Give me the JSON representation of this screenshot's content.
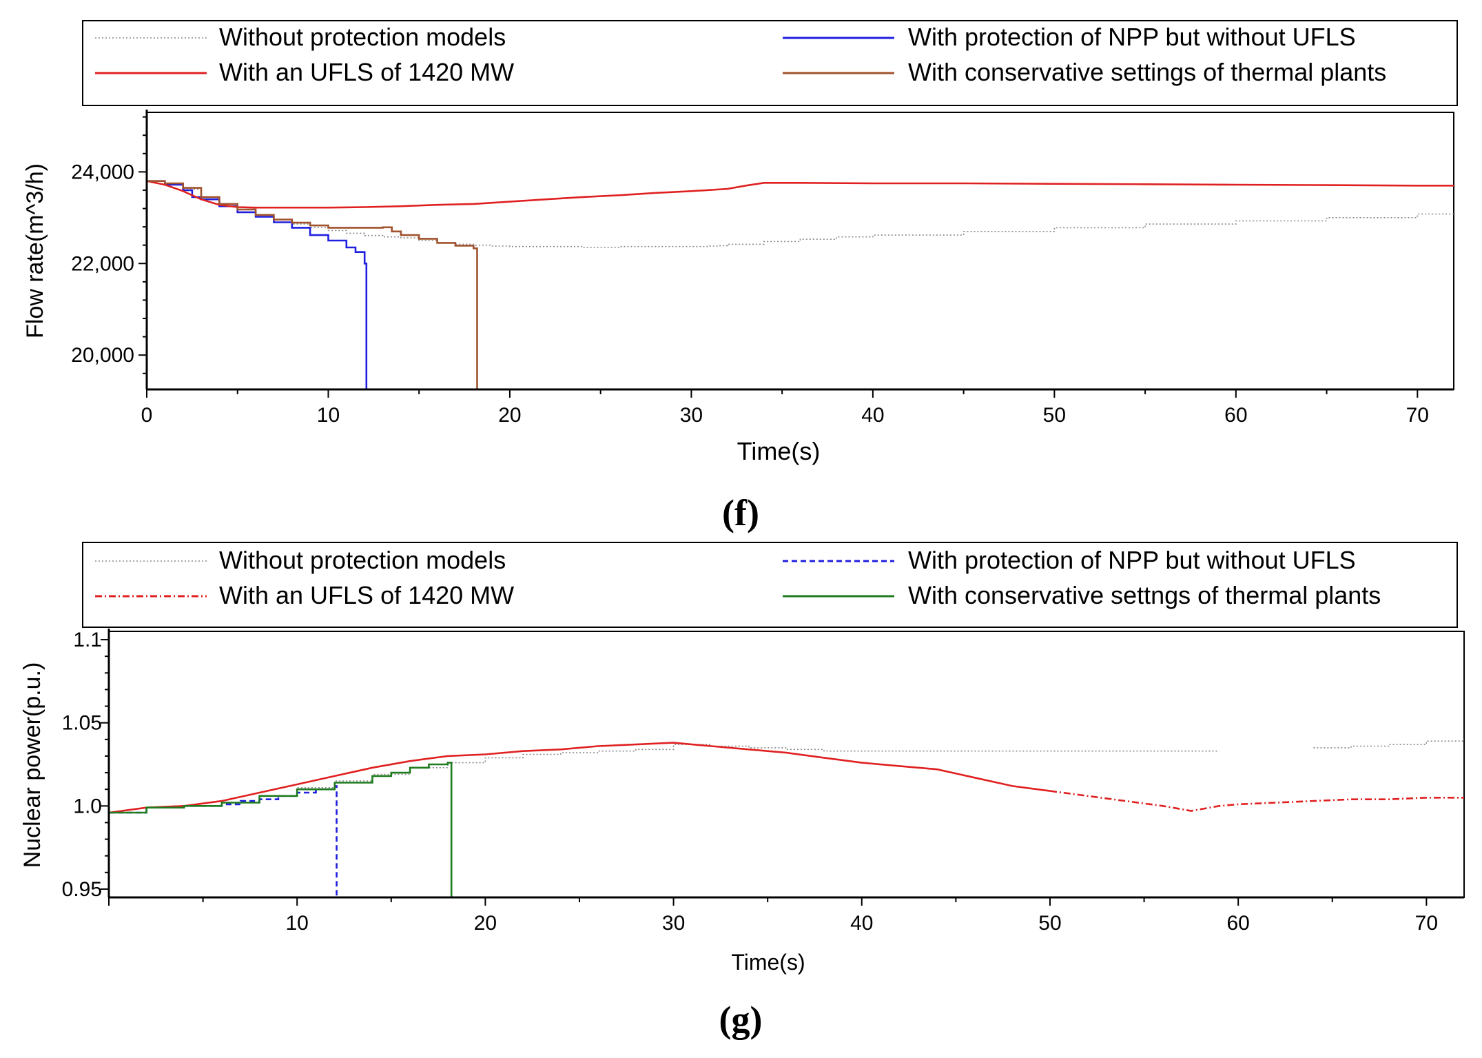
{
  "chart_data": [
    {
      "type": "line",
      "panel_label": "(f)",
      "xlabel": "Time(s)",
      "ylabel": "Flow rate(m^3/h)",
      "xlim": [
        0,
        72
      ],
      "ylim": [
        19250,
        25300
      ],
      "x_ticks": [
        0,
        10,
        20,
        30,
        40,
        50,
        60,
        70
      ],
      "x_tick_labels": [
        "0",
        "10",
        "20",
        "30",
        "40",
        "50",
        "60",
        "70"
      ],
      "y_ticks": [
        20000,
        22000,
        24000
      ],
      "y_tick_labels": [
        "20,000",
        "22,000",
        "24,000"
      ],
      "grid": false,
      "legend_position": "top",
      "series": [
        {
          "name": "Without protection models",
          "color": "#888888",
          "style": "dotted",
          "step": true,
          "x": [
            0,
            1,
            2,
            3,
            4,
            5,
            6,
            7,
            8,
            9,
            10,
            11,
            12,
            13,
            14,
            15,
            16,
            17,
            18,
            19,
            20,
            22,
            24,
            26,
            28,
            30,
            31,
            31.5,
            32,
            34,
            36,
            38,
            40,
            45,
            50,
            55,
            60,
            65,
            70,
            72
          ],
          "y": [
            23800,
            23750,
            23620,
            23440,
            23300,
            23180,
            23060,
            22950,
            22860,
            22790,
            22720,
            22660,
            22610,
            22580,
            22560,
            22500,
            22450,
            22420,
            22400,
            22380,
            22370,
            22370,
            22350,
            22370,
            22370,
            22370,
            22380,
            22390,
            22420,
            22480,
            22530,
            22580,
            22620,
            22700,
            22780,
            22860,
            22930,
            23000,
            23080,
            23120
          ]
        },
        {
          "name": "With protection of NPP but without UFLS",
          "color": "#1f1fe0",
          "style": "solid",
          "step": true,
          "x": [
            0,
            1,
            2,
            2.5,
            3,
            4,
            5,
            6,
            7,
            8,
            9,
            10,
            11,
            11.5,
            12,
            12.1,
            12.1
          ],
          "y": [
            23800,
            23720,
            23600,
            23450,
            23400,
            23250,
            23120,
            23020,
            22900,
            22780,
            22620,
            22500,
            22350,
            22250,
            22000,
            21900,
            19250
          ]
        },
        {
          "name": "With an UFLS of 1420 MW",
          "color": "#e02020",
          "style": "solid",
          "step": false,
          "x": [
            0,
            1,
            2,
            3,
            4,
            5,
            6,
            8,
            10,
            12,
            14,
            16,
            18,
            20,
            22,
            24,
            26,
            28,
            30,
            32,
            33,
            34,
            36,
            40,
            45,
            50,
            55,
            60,
            65,
            70,
            72
          ],
          "y": [
            23800,
            23720,
            23580,
            23400,
            23280,
            23230,
            23220,
            23220,
            23220,
            23230,
            23250,
            23280,
            23300,
            23350,
            23400,
            23450,
            23490,
            23540,
            23580,
            23630,
            23700,
            23760,
            23760,
            23750,
            23750,
            23740,
            23730,
            23720,
            23710,
            23700,
            23700
          ]
        },
        {
          "name": "With conservative settings of thermal plants",
          "color": "#a0522d",
          "style": "solid",
          "step": true,
          "x": [
            0,
            1,
            2,
            3,
            4,
            5,
            6,
            7,
            8,
            9,
            10,
            11,
            12,
            13,
            13.5,
            14,
            15,
            16,
            17,
            18,
            18.2,
            18.2
          ],
          "y": [
            23800,
            23750,
            23650,
            23450,
            23300,
            23180,
            23060,
            22960,
            22890,
            22830,
            22780,
            22780,
            22780,
            22790,
            22700,
            22620,
            22540,
            22450,
            22390,
            22330,
            22300,
            19250
          ]
        }
      ]
    },
    {
      "type": "line",
      "panel_label": "(g)",
      "xlabel": "Time(s)",
      "ylabel": "Nuclear power(p.u.)",
      "xlim": [
        0,
        72
      ],
      "ylim": [
        0.945,
        1.105
      ],
      "x_ticks": [
        10,
        20,
        30,
        40,
        50,
        60,
        70
      ],
      "x_tick_labels": [
        "10",
        "20",
        "30",
        "40",
        "50",
        "60",
        "70"
      ],
      "y_ticks": [
        0.95,
        1.0,
        1.05,
        1.1
      ],
      "y_tick_labels": [
        "0.95",
        "1.0",
        "1.05",
        "1.1"
      ],
      "grid": false,
      "legend_position": "top",
      "series": [
        {
          "name": "Without protection models",
          "color": "#888888",
          "style": "dotted",
          "step": true,
          "x": [
            0,
            2,
            4,
            6,
            8,
            10,
            12,
            14,
            16,
            18,
            20,
            22,
            24,
            26,
            28,
            30,
            32,
            34,
            36,
            38,
            40,
            45,
            50,
            55,
            59
          ],
          "y": [
            0.996,
            0.999,
            1.0,
            1.002,
            1.006,
            1.011,
            1.015,
            1.019,
            1.023,
            1.026,
            1.029,
            1.031,
            1.032,
            1.033,
            1.034,
            1.037,
            1.036,
            1.035,
            1.034,
            1.033,
            1.033,
            1.033,
            1.033,
            1.033,
            1.033
          ]
        },
        {
          "name": "Without protection models",
          "color": "#888888",
          "style": "dotted",
          "step": true,
          "x": [
            64,
            65,
            66,
            68,
            70,
            72
          ],
          "y": [
            1.035,
            1.035,
            1.036,
            1.037,
            1.039,
            1.04
          ]
        },
        {
          "name": "With protection of NPP but without UFLS",
          "color": "#1f1fe0",
          "style": "dashed",
          "step": true,
          "x": [
            0,
            2,
            4,
            6,
            7,
            8,
            9,
            10,
            11,
            12,
            12.1,
            12.1
          ],
          "y": [
            0.996,
            0.999,
            1.0,
            1.001,
            1.003,
            1.004,
            1.006,
            1.008,
            1.01,
            1.012,
            1.012,
            0.945
          ]
        },
        {
          "name": "With an UFLS of 1420 MW",
          "color": "#e02020",
          "style": "solid",
          "step": false,
          "x": [
            0,
            2,
            4,
            6,
            8,
            10,
            12,
            14,
            16,
            18,
            20,
            22,
            24,
            26,
            28,
            30,
            32,
            34,
            36,
            38,
            40,
            42,
            44,
            46,
            48,
            50
          ],
          "y": [
            0.996,
            0.999,
            1.0,
            1.003,
            1.008,
            1.013,
            1.018,
            1.023,
            1.027,
            1.03,
            1.031,
            1.033,
            1.034,
            1.036,
            1.037,
            1.038,
            1.036,
            1.034,
            1.032,
            1.029,
            1.026,
            1.024,
            1.022,
            1.017,
            1.012,
            1.009
          ]
        },
        {
          "name": "With an UFLS of 1420 MW",
          "color": "#e02020",
          "style": "dashdot",
          "step": false,
          "x": [
            50,
            52,
            54,
            56,
            57.5,
            59,
            60,
            62,
            64,
            66,
            68,
            70,
            72
          ],
          "y": [
            1.009,
            1.006,
            1.003,
            1.0,
            0.997,
            1.0,
            1.001,
            1.002,
            1.003,
            1.004,
            1.004,
            1.005,
            1.005
          ]
        },
        {
          "name": "With conservative settngs of thermal plants",
          "color": "#1e7b1e",
          "style": "solid",
          "step": true,
          "x": [
            0,
            2,
            4,
            6,
            8,
            10,
            12,
            14,
            15,
            16,
            17,
            18,
            18.2,
            18.2
          ],
          "y": [
            0.996,
            0.999,
            1.0,
            1.002,
            1.006,
            1.01,
            1.014,
            1.018,
            1.02,
            1.023,
            1.025,
            1.026,
            1.026,
            0.945
          ]
        }
      ]
    }
  ],
  "legends": [
    {
      "entries": [
        {
          "label": "Without protection models",
          "color": "#888888",
          "style": "dotted"
        },
        {
          "label": "With protection of NPP but without UFLS",
          "color": "#1f1fe0",
          "style": "solid"
        },
        {
          "label": "With an UFLS of 1420 MW",
          "color": "#e02020",
          "style": "solid"
        },
        {
          "label": "With conservative settings of thermal plants",
          "color": "#a0522d",
          "style": "solid"
        }
      ]
    },
    {
      "entries": [
        {
          "label": "Without protection models",
          "color": "#888888",
          "style": "dotted"
        },
        {
          "label": "With protection of NPP but without UFLS",
          "color": "#1f1fe0",
          "style": "dashed"
        },
        {
          "label": "With an UFLS of 1420 MW",
          "color": "#e02020",
          "style": "dashdot"
        },
        {
          "label": "With conservative settngs of thermal plants",
          "color": "#1e7b1e",
          "style": "solid"
        }
      ]
    }
  ]
}
